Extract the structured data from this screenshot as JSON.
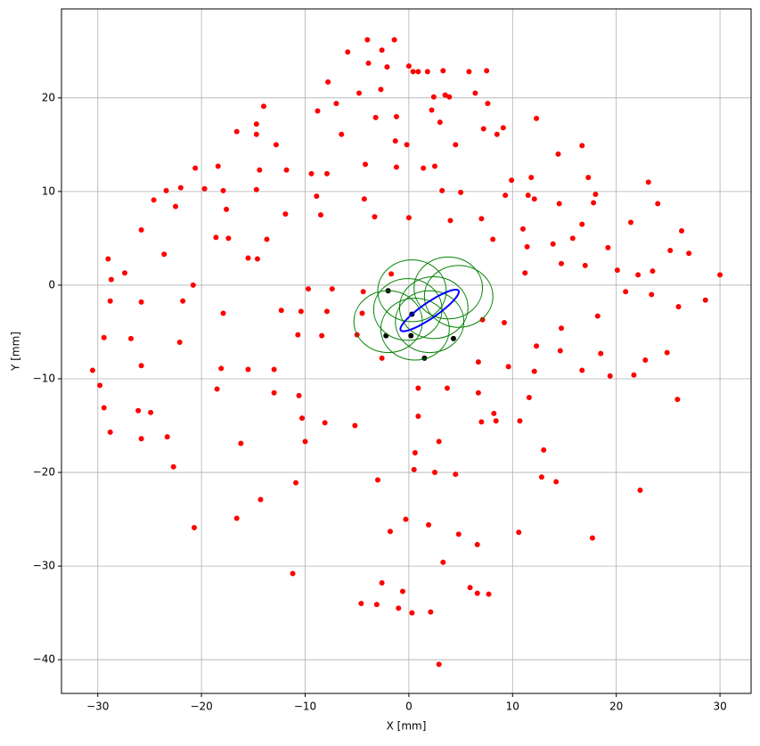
{
  "chart_data": {
    "type": "scatter",
    "xlabel": "X [mm]",
    "ylabel": "Y [mm]",
    "xlim": [
      -33.5,
      33.0
    ],
    "ylim": [
      -43.6,
      29.5
    ],
    "xticks": [
      {
        "value": -30,
        "label": "−30"
      },
      {
        "value": -20,
        "label": "−20"
      },
      {
        "value": -10,
        "label": "−10"
      },
      0,
      10,
      20,
      30
    ],
    "yticks": [
      {
        "value": -40,
        "label": "−40"
      },
      {
        "value": -30,
        "label": "−30"
      },
      {
        "value": -20,
        "label": "−20"
      },
      {
        "value": -10,
        "label": "−10"
      },
      0,
      10,
      20
    ],
    "grid": true,
    "series": [
      {
        "color": "#ff0000",
        "x": [
          -4.0,
          -1.4,
          -2.6,
          -5.9,
          -3.9,
          -2.1,
          0.0,
          0.4,
          0.9,
          1.8,
          3.3,
          5.8,
          7.5,
          -7.8,
          6.4,
          -4.8,
          -2.7,
          2.4,
          3.5,
          3.9,
          7.6,
          -14.0,
          -7.0,
          -8.8,
          2.2,
          -3.2,
          -1.2,
          3.0,
          -14.7,
          12.3,
          7.2,
          9.1,
          8.5,
          -16.6,
          -14.7,
          -6.5,
          -1.3,
          -0.2,
          4.5,
          16.7,
          -12.8,
          14.4,
          -4.2,
          -1.2,
          1.4,
          2.5,
          -20.6,
          -18.4,
          -14.4,
          -11.8,
          -9.4,
          -7.9,
          11.8,
          17.3,
          9.9,
          23.1,
          -24.6,
          -22.0,
          -19.7,
          -17.9,
          -14.7,
          -8.9,
          3.2,
          5.0,
          9.3,
          11.5,
          12.1,
          18.0,
          -4.3,
          -23.4,
          -22.5,
          14.5,
          17.8,
          24.0,
          -17.6,
          -11.9,
          -8.5,
          -3.3,
          0.0,
          4.0,
          7.0,
          21.4,
          16.7,
          11.0,
          -25.8,
          26.3,
          15.8,
          -18.6,
          -17.4,
          -13.7,
          8.1,
          13.9,
          11.4,
          19.2,
          -23.6,
          25.2,
          27.0,
          -29.0,
          -15.5,
          -14.6,
          -27.4,
          14.7,
          17.0,
          20.1,
          23.5,
          11.2,
          22.1,
          30.0,
          -1.7,
          -28.7,
          -20.8,
          -9.7,
          -7.4,
          -4.4,
          20.9,
          23.4,
          -28.8,
          -25.8,
          -21.8,
          28.6,
          26.0,
          -12.3,
          -10.4,
          -7.9,
          -4.5,
          -17.9,
          18.2,
          9.2,
          7.1,
          14.7,
          -10.7,
          -8.4,
          -5.0,
          -29.4,
          -26.8,
          -22.1,
          12.3,
          14.6,
          24.9,
          18.5,
          22.8,
          -2.6,
          6.7,
          9.6,
          -18.1,
          -15.5,
          -13.0,
          -30.5,
          -25.8,
          12.1,
          16.7,
          21.7,
          19.4,
          -29.8,
          0.9,
          3.7,
          -18.5,
          -13.0,
          -10.6,
          6.7,
          11.6,
          25.9,
          -29.4,
          -26.1,
          -24.9,
          8.2,
          -10.3,
          0.9,
          8.4,
          7.0,
          10.7,
          -8.1,
          -5.2,
          -28.8,
          -23.3,
          -25.8,
          -16.2,
          2.9,
          -10.0,
          13.0,
          0.6,
          -22.7,
          0.5,
          2.5,
          4.5,
          12.8,
          14.2,
          -3.0,
          -10.9,
          22.3,
          -14.3,
          -16.6,
          -0.3,
          1.9,
          -20.7,
          -1.8,
          4.8,
          10.6,
          17.7,
          6.6,
          3.3,
          -11.2,
          -2.6,
          5.9,
          -0.6,
          6.6,
          7.7,
          -4.6,
          -3.1,
          -1.0,
          2.1,
          0.3,
          2.9
        ],
        "y": [
          26.2,
          26.2,
          25.1,
          24.9,
          23.7,
          23.3,
          23.4,
          22.8,
          22.8,
          22.8,
          22.9,
          22.8,
          22.9,
          21.7,
          20.5,
          20.5,
          20.9,
          20.1,
          20.3,
          20.1,
          19.4,
          19.1,
          19.4,
          18.6,
          18.7,
          17.9,
          18.0,
          17.4,
          17.2,
          17.8,
          16.7,
          16.8,
          16.1,
          16.4,
          16.1,
          16.1,
          15.4,
          15.0,
          15.0,
          14.9,
          15.0,
          14.0,
          12.9,
          12.6,
          12.5,
          12.7,
          12.5,
          12.7,
          12.3,
          12.3,
          11.9,
          11.9,
          11.5,
          11.5,
          11.2,
          11.0,
          9.1,
          10.4,
          10.3,
          10.1,
          10.2,
          9.5,
          10.1,
          9.9,
          9.6,
          9.6,
          9.2,
          9.7,
          9.2,
          10.1,
          8.4,
          8.7,
          8.8,
          8.7,
          8.1,
          7.6,
          7.5,
          7.3,
          7.2,
          6.9,
          7.1,
          6.7,
          6.5,
          6.0,
          5.9,
          5.8,
          5.0,
          5.1,
          5.0,
          4.9,
          4.9,
          4.4,
          4.1,
          4.0,
          3.3,
          3.7,
          3.4,
          2.8,
          2.9,
          2.8,
          1.3,
          2.3,
          2.1,
          1.6,
          1.5,
          1.3,
          1.1,
          1.1,
          1.2,
          0.6,
          0.0,
          -0.4,
          -0.4,
          -0.7,
          -0.7,
          -1.0,
          -1.7,
          -1.8,
          -1.7,
          -1.6,
          -2.3,
          -2.7,
          -2.8,
          -2.8,
          -3.0,
          -3.0,
          -3.3,
          -4.0,
          -3.7,
          -4.6,
          -5.3,
          -5.4,
          -5.3,
          -5.6,
          -5.7,
          -6.1,
          -6.5,
          -7.0,
          -7.2,
          -7.3,
          -8.0,
          -7.8,
          -8.2,
          -8.7,
          -8.9,
          -9.0,
          -9.0,
          -9.1,
          -8.6,
          -9.2,
          -9.1,
          -9.6,
          -9.7,
          -10.7,
          -11.0,
          -11.0,
          -11.1,
          -11.5,
          -11.8,
          -11.5,
          -12.0,
          -12.2,
          -13.1,
          -13.4,
          -13.6,
          -13.7,
          -14.2,
          -14.0,
          -14.5,
          -14.6,
          -14.5,
          -14.7,
          -15.0,
          -15.7,
          -16.2,
          -16.4,
          -16.9,
          -16.7,
          -16.7,
          -17.6,
          -17.9,
          -19.4,
          -19.7,
          -20.0,
          -20.2,
          -20.5,
          -21.0,
          -20.8,
          -21.1,
          -21.9,
          -22.9,
          -24.9,
          -25.0,
          -25.6,
          -25.9,
          -26.3,
          -26.6,
          -26.4,
          -27.0,
          -27.7,
          -29.6,
          -30.8,
          -31.8,
          -32.3,
          -32.7,
          -32.9,
          -33.0,
          -34.0,
          -34.1,
          -34.5,
          -34.9,
          -35.0,
          -40.5
        ]
      },
      {
        "color": "#000000",
        "x": [
          -2.0,
          0.3,
          -2.2,
          0.2,
          1.5,
          4.3
        ],
        "y": [
          -0.6,
          -3.1,
          -5.4,
          -5.4,
          -7.8,
          -5.7
        ]
      }
    ],
    "circles": {
      "color": "#008000",
      "cx": [
        0.3,
        3.8,
        4.8,
        2.4,
        -0.1,
        -2.0,
        2.0,
        0.6
      ],
      "cy": [
        -0.6,
        -0.3,
        -1.2,
        -2.4,
        -2.6,
        -3.9,
        -3.9,
        -4.7
      ],
      "r": [
        3.3,
        3.3,
        3.3,
        3.3,
        3.3,
        3.3,
        3.3,
        3.3
      ]
    },
    "ellipse": {
      "color": "#0000ff",
      "cx": 2.0,
      "cy": -2.7,
      "semi_major": 3.5,
      "semi_minor": 0.8,
      "angle_deg": 37.5
    }
  }
}
